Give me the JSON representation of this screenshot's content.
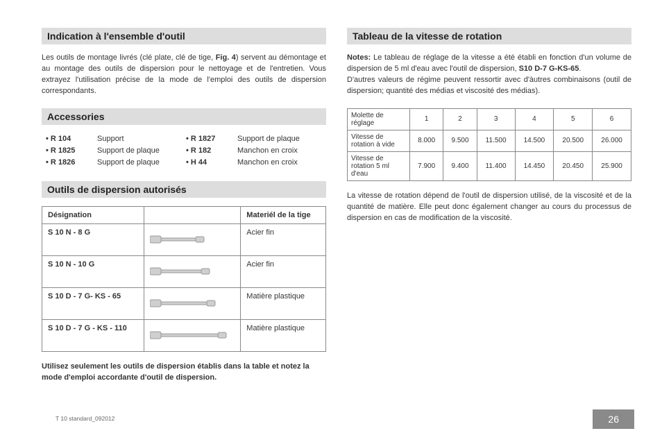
{
  "left": {
    "section1": {
      "title": "Indication à l'ensemble d'outil"
    },
    "para1_a": "Les outils de montage livrés (clé plate, clé de tige, ",
    "para1_b": "Fig. 4",
    "para1_c": ") servent au démontage et au montage des outils de dispersion pour le nettoyage et de l'entretien. Vous extrayez l'utilisation précise de la mode de l'emploi des outils de dispersion correspondants.",
    "section2": {
      "title": "Accessories"
    },
    "accessories": [
      {
        "code": "R 104",
        "desc": "Support"
      },
      {
        "code": "R 1825",
        "desc": "Support de plaque"
      },
      {
        "code": "R 1826",
        "desc": "Support de plaque"
      },
      {
        "code": "R 1827",
        "desc": "Support de plaque"
      },
      {
        "code": "R 182",
        "desc": "Manchon en croix"
      },
      {
        "code": "H 44",
        "desc": "Manchon en croix"
      }
    ],
    "section3": {
      "title": "Outils de dispersion autorisés"
    },
    "tools_headers": {
      "desig": "Désignation",
      "mat": "Materiél de la tige"
    },
    "tools": [
      {
        "name": "S 10 N - 8 G",
        "material": "Acier fin",
        "len": 70
      },
      {
        "name": "S 10 N - 10 G",
        "material": "Acier fin",
        "len": 78
      },
      {
        "name": "S 10 D - 7 G- KS - 65",
        "material": "Matière plastique",
        "len": 86
      },
      {
        "name": "S 10 D - 7 G - KS - 110",
        "material": "Matière plastique",
        "len": 102
      }
    ],
    "tool_colors": {
      "stroke": "#9a9a9a",
      "fill": "#cfcfcf"
    },
    "disclaimer": "Utilisez seulement les outils de dispersion établis dans la table et notez la mode d'emploi accordante d'outil de dispersion."
  },
  "right": {
    "section1": {
      "title": "Tableau de la vitesse de rotation"
    },
    "notes_label": "Notes:",
    "notes_a": " Le tableau de réglage de la vitesse a été établi en fonction d'un volume de dispersion de 5 ml d'eau avec l'outil de dispersion, ",
    "notes_b": "S10 D-7 G-KS-65",
    "notes_c": ".",
    "notes_d": "D'autres valeurs de régime peuvent ressortir avec d'àutres combinaisons (outil de dispersion; quantité des médias et viscosité des médias).",
    "speed_headers": {
      "label": "Molette de réglage",
      "cols": [
        "1",
        "2",
        "3",
        "4",
        "5",
        "6"
      ]
    },
    "speed_rows": [
      {
        "label": "Vitesse de rotation à vide",
        "vals": [
          "8.000",
          "9.500",
          "11.500",
          "14.500",
          "20.500",
          "26.000"
        ]
      },
      {
        "label": "Vitesse de rotation 5 ml d'eau",
        "vals": [
          "7.900",
          "9.400",
          "11.400",
          "14.450",
          "20.450",
          "25.900"
        ]
      }
    ],
    "para2": "La vitesse de rotation dépend de l'outil de dispersion utilisé, de la viscosité et de la quantité de matière. Elle peut donc également changer au cours du processus de dispersion en cas de modification de la viscosité."
  },
  "footer": {
    "doc": "T 10 standard_092012",
    "page": "26"
  }
}
